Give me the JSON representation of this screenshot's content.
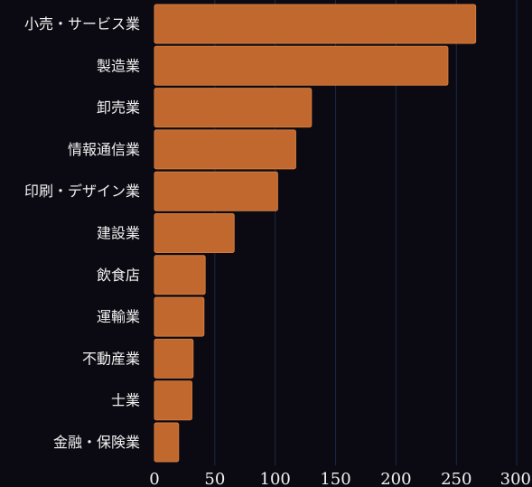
{
  "chart_data": {
    "type": "bar",
    "orientation": "horizontal",
    "title": "",
    "xlabel": "",
    "ylabel": "",
    "categories": [
      "小売・サービス業",
      "製造業",
      "卸売業",
      "情報通信業",
      "印刷・デザイン業",
      "建設業",
      "飲食店",
      "運輸業",
      "不動産業",
      "士業",
      "金融・保険業"
    ],
    "values": [
      266,
      243,
      130,
      117,
      102,
      66,
      42,
      41,
      32,
      31,
      20
    ],
    "xlim": [
      0,
      300
    ],
    "xticks": [
      "0",
      "50",
      "100",
      "150",
      "200",
      "250",
      "300"
    ],
    "grid": "vertical",
    "legend": "none",
    "colors": {
      "background": "#0b0a12",
      "bar": "#c0682e",
      "bar_edge": "#d27a3e",
      "grid": "#1a2a45",
      "text": "#f1f1f1"
    }
  }
}
